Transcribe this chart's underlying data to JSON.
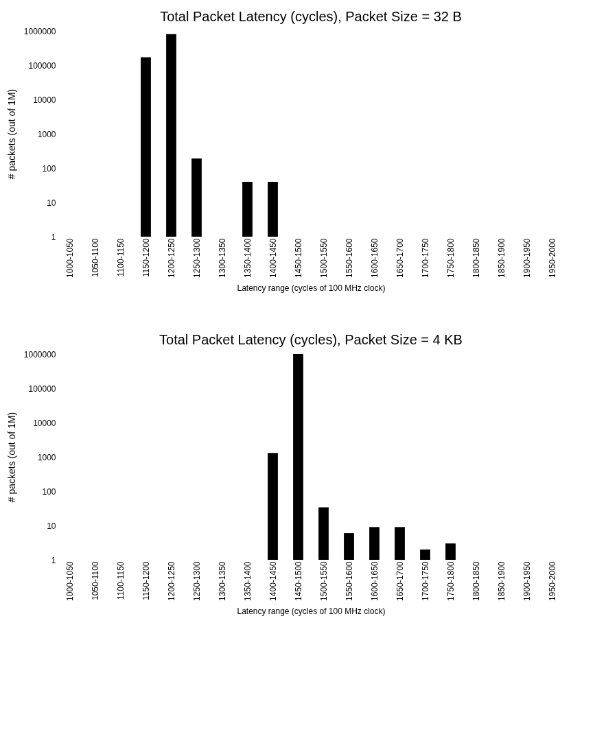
{
  "chart_data": [
    {
      "type": "bar",
      "title": "Total Packet Latency (cycles), Packet Size = 32 B",
      "xlabel": "Latency range (cycles of 100 MHz clock)",
      "ylabel": "# packets (out of 1M)",
      "categories": [
        "1000-1050",
        "1050-1100",
        "1100-1150",
        "1150-1200",
        "1200-1250",
        "1250-1300",
        "1300-1350",
        "1350-1400",
        "1400-1450",
        "1450-1500",
        "1500-1550",
        "1550-1600",
        "1600-1650",
        "1650-1700",
        "1700-1750",
        "1750-1800",
        "1800-1850",
        "1850-1900",
        "1900-1950",
        "1950-2000"
      ],
      "values": [
        null,
        null,
        null,
        170000,
        800000,
        190,
        null,
        40,
        40,
        null,
        null,
        null,
        null,
        null,
        null,
        null,
        null,
        null,
        null,
        null
      ],
      "color": "#000000",
      "log": true,
      "ylim": [
        1,
        1000000
      ],
      "yticks": [
        1,
        10,
        100,
        1000,
        10000,
        100000,
        1000000
      ],
      "grid": false
    },
    {
      "type": "bar",
      "title": "Total Packet Latency (cycles), Packet Size = 4 KB",
      "xlabel": "Latency range (cycles of 100 MHz clock)",
      "ylabel": "# packets (out of 1M)",
      "categories": [
        "1000-1050",
        "1050-1100",
        "1100-1150",
        "1150-1200",
        "1200-1250",
        "1250-1300",
        "1300-1350",
        "1350-1400",
        "1400-1450",
        "1450-1500",
        "1500-1550",
        "1550-1600",
        "1600-1650",
        "1650-1700",
        "1700-1750",
        "1750-1800",
        "1800-1850",
        "1850-1900",
        "1900-1950",
        "1950-2000"
      ],
      "values": [
        null,
        null,
        null,
        null,
        null,
        null,
        null,
        null,
        1300,
        1000000,
        34,
        6,
        9,
        9,
        2,
        3,
        null,
        null,
        null,
        null
      ],
      "color": "#000000",
      "log": true,
      "ylim": [
        1,
        1000000
      ],
      "yticks": [
        1,
        10,
        100,
        1000,
        10000,
        100000,
        1000000
      ],
      "grid": false
    }
  ]
}
